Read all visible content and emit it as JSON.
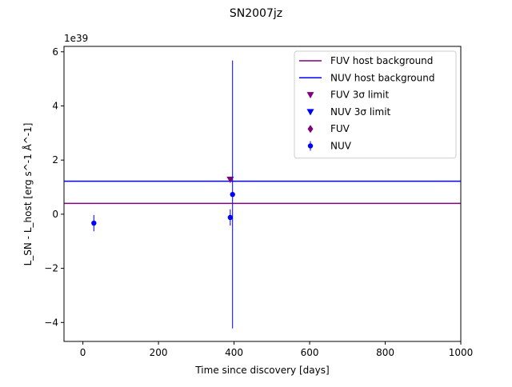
{
  "chart_data": {
    "type": "scatter",
    "title": "SN2007jz",
    "xlabel": "Time since discovery [days]",
    "ylabel": "L_SN - L_host [erg s^-1 Å^-1]",
    "y_offset_label": "1e39",
    "xlim": [
      -50,
      1000
    ],
    "ylim": [
      -4.7,
      6.2
    ],
    "x_ticks": [
      0,
      200,
      400,
      600,
      800,
      1000
    ],
    "x_tick_labels": [
      "0",
      "200",
      "400",
      "600",
      "800",
      "1000"
    ],
    "y_ticks": [
      -4,
      -2,
      0,
      2,
      4,
      6
    ],
    "y_tick_labels": [
      "−4",
      "−2",
      "0",
      "2",
      "4",
      "6"
    ],
    "grid": false,
    "legend_position": "top-right",
    "host_backgrounds": [
      {
        "name": "FUV host background",
        "y": 0.4,
        "color": "#800080"
      },
      {
        "name": "NUV host background",
        "y": 1.22,
        "color": "#0000ff"
      }
    ],
    "series": [
      {
        "name": "FUV 3σ limit",
        "marker": "triangle-down",
        "color": "#800080",
        "points": [
          {
            "x": 390,
            "y": 1.28
          }
        ]
      },
      {
        "name": "NUV 3σ limit",
        "marker": "triangle-down",
        "color": "#0000ff",
        "points": []
      },
      {
        "name": "FUV",
        "marker": "diamond",
        "color": "#800080",
        "points": []
      },
      {
        "name": "NUV",
        "marker": "circle",
        "color": "#0000ff",
        "points": [
          {
            "x": 29,
            "y": -0.33,
            "yerr": 0.3
          },
          {
            "x": 390,
            "y": -0.12,
            "yerr": 0.3
          },
          {
            "x": 396,
            "y": 0.73,
            "yerr": 4.95
          }
        ]
      }
    ]
  }
}
